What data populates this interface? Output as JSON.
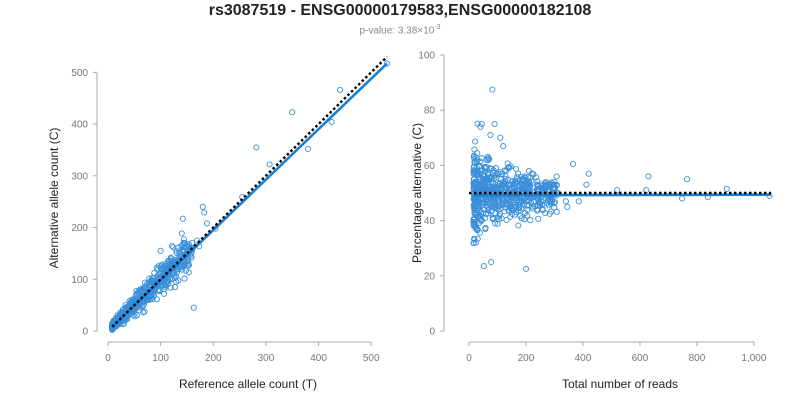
{
  "title": "rs3087519 - ENSG00000179583,ENSG00000182108",
  "subtitle": {
    "prefix": "p-value: 3.38×10",
    "exponent": "-3"
  },
  "colors": {
    "points": "#3a8fd9",
    "fit_line": "#1a7fd1",
    "reference_line": "#000000"
  },
  "chart_data": [
    {
      "type": "scatter",
      "title": "",
      "xlabel": "Reference allele count (T)",
      "ylabel": "Alternative allele count (C)",
      "xlim": [
        0,
        530
      ],
      "ylim": [
        0,
        520
      ],
      "xticks": [
        0,
        100,
        200,
        300,
        400,
        500
      ],
      "yticks": [
        0,
        100,
        200,
        300,
        400,
        500
      ],
      "xtick_labels": [
        "0",
        "100",
        "200",
        "300",
        "400",
        "500"
      ],
      "ytick_labels": [
        "0",
        "100",
        "200",
        "300",
        "400",
        "500"
      ],
      "reference_line": {
        "style": "dotted",
        "points": [
          [
            8,
            8
          ],
          [
            530,
            530
          ]
        ]
      },
      "fit_line": {
        "style": "solid",
        "points": [
          [
            8,
            8
          ],
          [
            530,
            517
          ]
        ]
      },
      "highlighted_points": [
        {
          "x": 350,
          "y": 423
        },
        {
          "x": 441,
          "y": 466
        },
        {
          "x": 380,
          "y": 352
        },
        {
          "x": 425,
          "y": 404
        },
        {
          "x": 530,
          "y": 517
        },
        {
          "x": 282,
          "y": 355
        },
        {
          "x": 307,
          "y": 322
        },
        {
          "x": 180,
          "y": 240
        },
        {
          "x": 183,
          "y": 229
        },
        {
          "x": 142,
          "y": 217
        },
        {
          "x": 163,
          "y": 45
        },
        {
          "x": 100,
          "y": 155
        },
        {
          "x": 188,
          "y": 208
        },
        {
          "x": 255,
          "y": 259
        },
        {
          "x": 173,
          "y": 164
        },
        {
          "x": 169,
          "y": 175
        },
        {
          "x": 204,
          "y": 198
        }
      ],
      "cluster": {
        "n": 650,
        "x_range": [
          8,
          160
        ],
        "spread": 0.3
      },
      "grid": false,
      "legend": "none"
    },
    {
      "type": "scatter",
      "title": "",
      "xlabel": "Total number of reads",
      "ylabel": "Percentage alternative (C)",
      "xlim": [
        0,
        1060
      ],
      "ylim": [
        0,
        100
      ],
      "xticks": [
        0,
        200,
        400,
        600,
        800,
        1000
      ],
      "yticks": [
        0,
        20,
        40,
        60,
        80,
        100
      ],
      "xtick_labels": [
        "0",
        "200",
        "400",
        "600",
        "800",
        "1,000"
      ],
      "ytick_labels": [
        "0",
        "20",
        "40",
        "60",
        "80",
        "100"
      ],
      "reference_line": {
        "style": "dotted",
        "points": [
          [
            0,
            50
          ],
          [
            1060,
            50
          ]
        ]
      },
      "fit_line": {
        "style": "solid",
        "points": [
          [
            16,
            49.2
          ],
          [
            1060,
            49.4
          ]
        ]
      },
      "highlighted_points": [
        {
          "x": 82,
          "y": 87.5
        },
        {
          "x": 200,
          "y": 22.5
        },
        {
          "x": 52,
          "y": 23.5
        },
        {
          "x": 78,
          "y": 25
        },
        {
          "x": 1055,
          "y": 49
        },
        {
          "x": 905,
          "y": 51.5
        },
        {
          "x": 838,
          "y": 48.5
        },
        {
          "x": 765,
          "y": 55
        },
        {
          "x": 748,
          "y": 48
        },
        {
          "x": 630,
          "y": 56
        },
        {
          "x": 622,
          "y": 51
        },
        {
          "x": 520,
          "y": 51
        },
        {
          "x": 420,
          "y": 57
        },
        {
          "x": 412,
          "y": 53
        },
        {
          "x": 385,
          "y": 47
        },
        {
          "x": 365,
          "y": 60.5
        },
        {
          "x": 340,
          "y": 47
        },
        {
          "x": 345,
          "y": 45
        },
        {
          "x": 300,
          "y": 54
        },
        {
          "x": 312,
          "y": 50
        },
        {
          "x": 90,
          "y": 75
        },
        {
          "x": 75,
          "y": 71
        },
        {
          "x": 40,
          "y": 74
        },
        {
          "x": 45,
          "y": 75
        },
        {
          "x": 120,
          "y": 67
        },
        {
          "x": 110,
          "y": 70
        }
      ],
      "cluster": {
        "n": 650,
        "x_range": [
          16,
          310
        ],
        "center": 49.5,
        "spread": 7
      },
      "grid": false,
      "legend": "none"
    }
  ]
}
